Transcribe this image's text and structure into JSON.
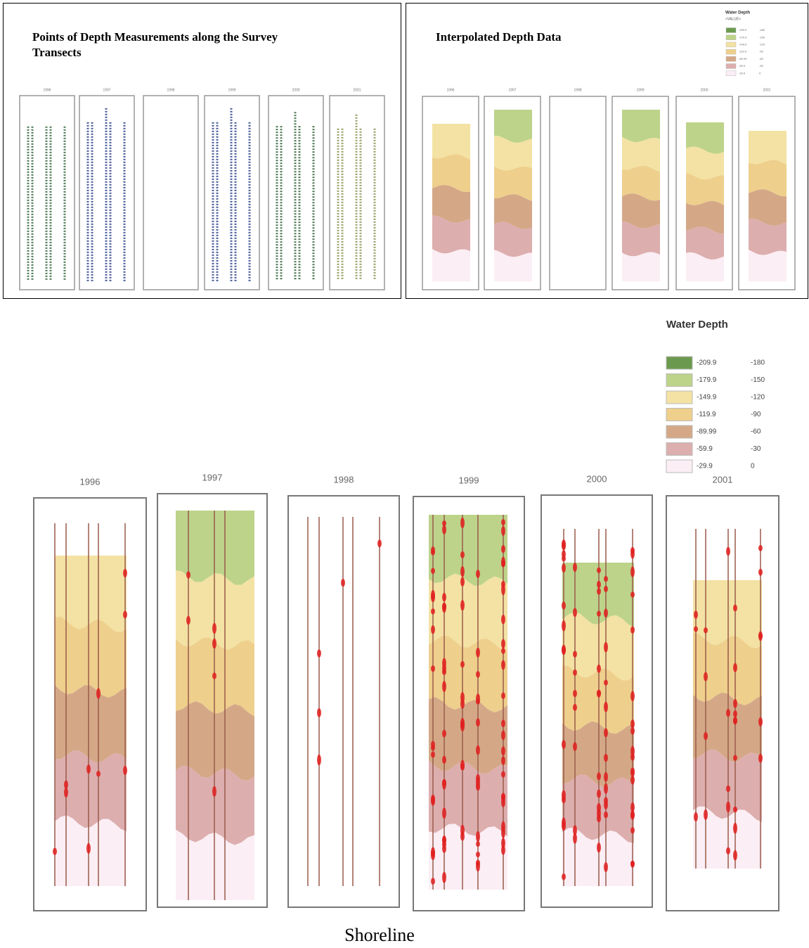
{
  "panels": {
    "points": {
      "title": "Points of Depth Measurements along the Survey Transects"
    },
    "interpolated": {
      "title": "Interpolated Depth Data"
    }
  },
  "years": [
    "1996",
    "1997",
    "1998",
    "1999",
    "2000",
    "2001"
  ],
  "legend": {
    "title": "Water Depth",
    "value_header": "<VALUE>",
    "items": [
      {
        "from": "-209.9",
        "to": "-180",
        "color": "#6b9a4e"
      },
      {
        "from": "-179.9",
        "to": "-150",
        "color": "#bdd38a"
      },
      {
        "from": "-149.9",
        "to": "-120",
        "color": "#f3e2a3"
      },
      {
        "from": "-119.9",
        "to": "-90",
        "color": "#eecf8c"
      },
      {
        "from": "-89.99",
        "to": "-60",
        "color": "#d4a887"
      },
      {
        "from": "-59.9",
        "to": "-30",
        "color": "#ddaeae"
      },
      {
        "from": "-29.9",
        "to": "0",
        "color": "#fbeef4"
      }
    ]
  },
  "caption": "Shoreline"
}
